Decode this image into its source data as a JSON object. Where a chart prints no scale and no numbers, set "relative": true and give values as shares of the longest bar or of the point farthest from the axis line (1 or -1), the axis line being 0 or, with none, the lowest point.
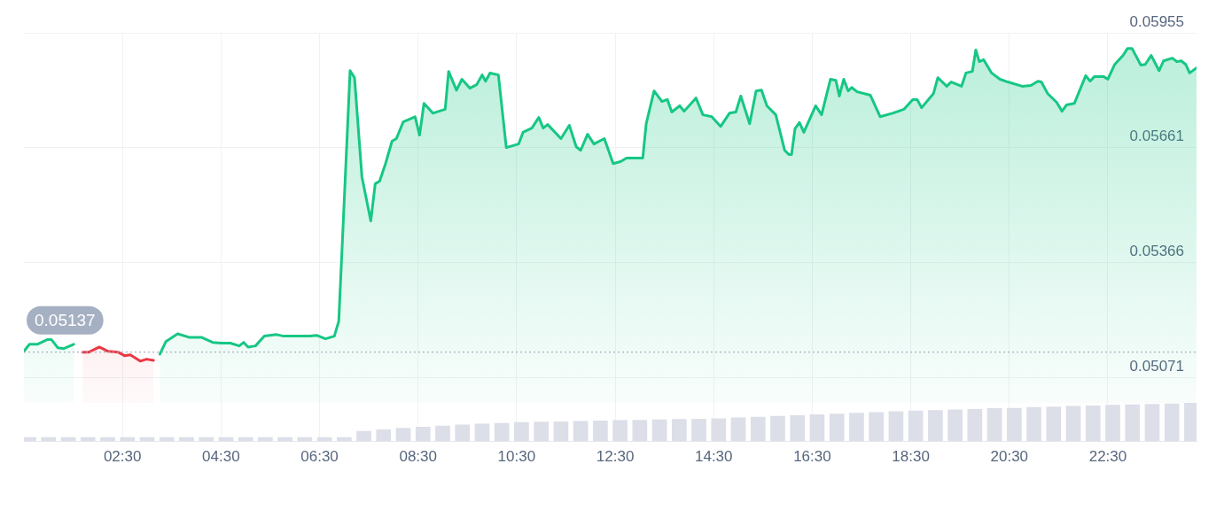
{
  "chart_data": [
    {
      "type": "area",
      "x": [
        0.5,
        0.61,
        0.77,
        0.97,
        1.06,
        1.19,
        1.31,
        1.51,
        1.69,
        1.82,
        2.03,
        2.21,
        2.41,
        2.54,
        2.66,
        2.86,
        2.99,
        3.13,
        3.26,
        3.38,
        3.62,
        3.85,
        4.1,
        4.33,
        4.51,
        4.69,
        4.87,
        4.96,
        5.05,
        5.2,
        5.38,
        5.63,
        5.77,
        6.01,
        6.31,
        6.44,
        6.62,
        6.8,
        6.89,
        6.98,
        7.12,
        7.21,
        7.36,
        7.54,
        7.63,
        7.72,
        7.84,
        7.97,
        8.06,
        8.2,
        8.44,
        8.53,
        8.62,
        8.8,
        9.05,
        9.12,
        9.28,
        9.39,
        9.55,
        9.69,
        9.8,
        9.87,
        9.96,
        10.13,
        10.29,
        10.54,
        10.63,
        10.81,
        10.95,
        11.04,
        11.13,
        11.4,
        11.57,
        11.71,
        11.8,
        11.94,
        12.07,
        12.28,
        12.46,
        12.61,
        12.73,
        12.91,
        13.06,
        13.13,
        13.29,
        13.45,
        13.56,
        13.65,
        13.81,
        13.9,
        14.14,
        14.28,
        14.46,
        14.64,
        14.82,
        14.95,
        15.05,
        15.23,
        15.36,
        15.47,
        15.58,
        15.76,
        15.94,
        16.03,
        16.08,
        16.15,
        16.24,
        16.33,
        16.57,
        16.69,
        16.87,
        16.98,
        17.05,
        17.14,
        17.23,
        17.3,
        17.41,
        17.68,
        17.88,
        18.13,
        18.36,
        18.54,
        18.63,
        18.72,
        18.96,
        19.05,
        19.23,
        19.32,
        19.53,
        19.62,
        19.75,
        19.82,
        19.89,
        19.98,
        20.14,
        20.31,
        20.47,
        20.76,
        20.94,
        21.08,
        21.15,
        21.28,
        21.46,
        21.57,
        21.66,
        21.82,
        22.05,
        22.14,
        22.23,
        22.41,
        22.5,
        22.64,
        22.81,
        22.9,
        22.99,
        23.17,
        23.26,
        23.38,
        23.54,
        23.63,
        23.81,
        23.9,
        23.99,
        24.08,
        24.16,
        24.3
      ],
      "series": [
        {
          "color": "#16c784",
          "values": [
            0.05139,
            0.05157,
            0.05157,
            0.05169,
            0.05169,
            0.05148,
            0.05146,
            0.05157,
            null,
            null,
            null,
            null,
            null,
            null,
            null,
            null,
            null,
            null,
            0.05132,
            0.05164,
            0.05184,
            0.05175,
            0.05175,
            0.05162,
            0.0516,
            0.0516,
            0.05153,
            0.05162,
            0.0515,
            0.05153,
            0.05178,
            0.05182,
            0.05178,
            0.05178,
            0.05178,
            0.0518,
            0.05171,
            0.05178,
            0.05216,
            0.05466,
            0.05858,
            0.0584,
            0.05586,
            0.05473,
            0.05568,
            0.05575,
            0.0562,
            0.05677,
            0.05684,
            0.05727,
            0.0574,
            0.05693,
            0.05774,
            0.05749,
            0.05759,
            0.05856,
            0.05808,
            0.05836,
            0.05813,
            0.05822,
            0.05847,
            0.05831,
            0.05852,
            0.05847,
            0.05661,
            0.0567,
            0.057,
            0.05711,
            0.05738,
            0.05711,
            0.0572,
            0.05684,
            0.05718,
            0.05663,
            0.05654,
            0.05695,
            0.0567,
            0.05684,
            0.0562,
            0.05625,
            0.05634,
            0.05634,
            0.05634,
            0.05722,
            0.05806,
            0.05779,
            0.05784,
            0.05752,
            0.05768,
            0.05754,
            0.05788,
            0.05745,
            0.0574,
            0.05715,
            0.05749,
            0.05752,
            0.05793,
            0.05722,
            0.05806,
            0.05808,
            0.05768,
            0.05745,
            0.05654,
            0.05643,
            0.05643,
            0.05709,
            0.05725,
            0.057,
            0.05768,
            0.05745,
            0.05836,
            0.05833,
            0.05793,
            0.05836,
            0.05806,
            0.05815,
            0.05804,
            0.05795,
            0.0574,
            0.05749,
            0.05759,
            0.05784,
            0.05784,
            0.05763,
            0.05799,
            0.0584,
            0.05818,
            0.05829,
            0.05818,
            0.05852,
            0.05856,
            0.05911,
            0.05881,
            0.05886,
            0.05852,
            0.05836,
            0.05829,
            0.05818,
            0.0582,
            0.05831,
            0.05829,
            0.05799,
            0.05777,
            0.05754,
            0.0577,
            0.05774,
            0.05845,
            0.05831,
            0.05843,
            0.05843,
            0.05836,
            0.05874,
            0.05897,
            0.05915,
            0.05915,
            0.05872,
            0.05874,
            0.05897,
            0.05858,
            0.05883,
            0.0589,
            0.05881,
            0.05883,
            0.05874,
            0.05852,
            0.05865
          ]
        },
        {
          "color": "#ea3943",
          "values": [
            null,
            null,
            null,
            null,
            null,
            null,
            null,
            null,
            0.05137,
            0.05137,
            0.0515,
            0.05139,
            0.05137,
            0.05128,
            0.0513,
            0.05114,
            0.05119,
            0.05116,
            null,
            null,
            null,
            null,
            null,
            null,
            null,
            null,
            null,
            null,
            null,
            null,
            null,
            null,
            null,
            null,
            null,
            null,
            null,
            null,
            null,
            null,
            null,
            null,
            null,
            null,
            null,
            null,
            null,
            null,
            null,
            null,
            null,
            null,
            null,
            null,
            null,
            null,
            null,
            null,
            null,
            null,
            null,
            null,
            null,
            null,
            null,
            null,
            null,
            null,
            null,
            null,
            null,
            null,
            null,
            null,
            null,
            null,
            null,
            null,
            null,
            null,
            null,
            null,
            null,
            null,
            null,
            null,
            null,
            null,
            null,
            null,
            null,
            null,
            null,
            null,
            null,
            null,
            null,
            null,
            null,
            null,
            null,
            null,
            null,
            null,
            null,
            null,
            null,
            null,
            null,
            null,
            null,
            null,
            null,
            null,
            null,
            null,
            null,
            null,
            null,
            null,
            null,
            null,
            null,
            null,
            null,
            null,
            null,
            null,
            null,
            null,
            null,
            null,
            null,
            null,
            null,
            null,
            null,
            null,
            null,
            null,
            null,
            null,
            null,
            null,
            null,
            null,
            null,
            null,
            null,
            null,
            null,
            null,
            null,
            null,
            null,
            null,
            null,
            null,
            null,
            null,
            null,
            null,
            null,
            null,
            null,
            null
          ]
        }
      ],
      "xlim": [
        0.5,
        24.3
      ],
      "xticks": [
        {
          "value": 2.5,
          "label": null
        },
        {
          "value": 4.5,
          "label": null
        },
        {
          "value": 6.5,
          "label": null
        },
        {
          "value": 8.5,
          "label": null
        },
        {
          "value": 10.5,
          "label": null
        },
        {
          "value": 12.5,
          "label": null
        },
        {
          "value": 14.5,
          "label": null
        },
        {
          "value": 16.5,
          "label": null
        },
        {
          "value": 18.5,
          "label": null
        },
        {
          "value": 20.5,
          "label": null
        },
        {
          "value": 22.5,
          "label": null
        }
      ],
      "ylim": [
        0.05007,
        0.05955
      ],
      "tick_labels": "y",
      "yticks": [
        0.05071,
        0.05366,
        0.05661,
        0.05955
      ],
      "ref_lines": [
        {
          "axis": "y",
          "value": 0.05137,
          "label": "0.05137",
          "color": "#a6b0c3",
          "line_style": "dotted"
        }
      ],
      "grid": true,
      "legend": false,
      "marker": "none",
      "line_style": "solid"
    },
    {
      "type": "bar",
      "relative": true,
      "x": [
        0.6,
        1,
        1.4,
        1.8,
        2.2,
        2.6,
        3,
        3.4,
        3.8,
        4.2,
        4.6,
        5,
        5.4,
        5.8,
        6.2,
        6.6,
        7,
        7.4,
        7.8,
        8.2,
        8.6,
        9,
        9.4,
        9.8,
        10.2,
        10.6,
        11,
        11.4,
        11.8,
        12.2,
        12.6,
        13,
        13.4,
        13.8,
        14.2,
        14.6,
        15,
        15.4,
        15.8,
        16.2,
        16.6,
        17,
        17.4,
        17.8,
        18.2,
        18.6,
        19,
        19.4,
        19.8,
        20.2,
        20.6,
        21,
        21.4,
        21.8,
        22.2,
        22.6,
        23,
        23.4,
        23.8,
        24.2
      ],
      "xlim": [
        0.5,
        24.3
      ],
      "xticks": [
        {
          "value": 2.5,
          "label": "02:30"
        },
        {
          "value": 4.5,
          "label": "04:30"
        },
        {
          "value": 6.5,
          "label": "06:30"
        },
        {
          "value": 8.5,
          "label": "08:30"
        },
        {
          "value": 10.5,
          "label": "10:30"
        },
        {
          "value": 12.5,
          "label": "12:30"
        },
        {
          "value": 14.5,
          "label": "14:30"
        },
        {
          "value": 16.5,
          "label": "16:30"
        },
        {
          "value": 18.5,
          "label": "18:30"
        },
        {
          "value": 20.5,
          "label": "20:30"
        },
        {
          "value": 22.5,
          "label": "22:30"
        }
      ],
      "tick_labels": "x",
      "grid": "x",
      "values": [
        0.11,
        0.11,
        0.11,
        0.11,
        0.11,
        0.11,
        0.11,
        0.11,
        0.11,
        0.11,
        0.11,
        0.11,
        0.11,
        0.11,
        0.11,
        0.11,
        0.11,
        0.27,
        0.31,
        0.35,
        0.38,
        0.41,
        0.44,
        0.46,
        0.48,
        0.5,
        0.51,
        0.52,
        0.53,
        0.54,
        0.55,
        0.56,
        0.57,
        0.58,
        0.59,
        0.6,
        0.62,
        0.64,
        0.66,
        0.68,
        0.7,
        0.72,
        0.74,
        0.76,
        0.78,
        0.8,
        0.81,
        0.83,
        0.84,
        0.86,
        0.87,
        0.89,
        0.9,
        0.92,
        0.93,
        0.95,
        0.96,
        0.97,
        0.98,
        1
      ],
      "color": "#dcdee8",
      "legend": false
    }
  ]
}
